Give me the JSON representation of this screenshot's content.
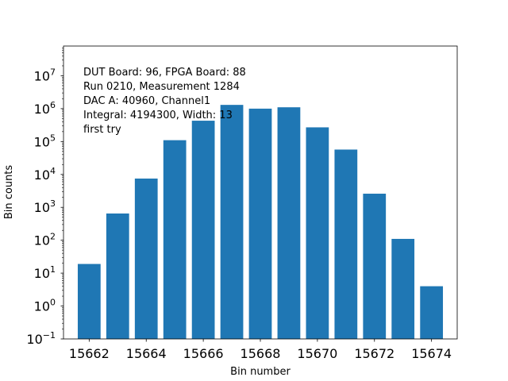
{
  "chart_data": {
    "type": "bar",
    "scale_y": "log",
    "xlabel": "Bin number",
    "ylabel": "Bin counts",
    "ylim": [
      0.1,
      80000000
    ],
    "xlim": [
      15661.1,
      15674.9
    ],
    "bar_color": "#1f77b4",
    "x": [
      15662,
      15663,
      15664,
      15665,
      15666,
      15667,
      15668,
      15669,
      15670,
      15671,
      15672,
      15673,
      15674
    ],
    "values": [
      19,
      650,
      7500,
      110000,
      430000,
      1300000,
      1000000,
      1100000,
      270000,
      57000,
      2600,
      110,
      4
    ],
    "x_ticks": [
      {
        "value": 15662,
        "label": "15662"
      },
      {
        "value": 15664,
        "label": "15664"
      },
      {
        "value": 15666,
        "label": "15666"
      },
      {
        "value": 15668,
        "label": "15668"
      },
      {
        "value": 15670,
        "label": "15670"
      },
      {
        "value": 15672,
        "label": "15672"
      },
      {
        "value": 15674,
        "label": "15674"
      }
    ],
    "y_ticks": [
      {
        "exp": -1,
        "base": "10",
        "sup": "−1"
      },
      {
        "exp": 0,
        "base": "10",
        "sup": "0"
      },
      {
        "exp": 1,
        "base": "10",
        "sup": "1"
      },
      {
        "exp": 2,
        "base": "10",
        "sup": "2"
      },
      {
        "exp": 3,
        "base": "10",
        "sup": "3"
      },
      {
        "exp": 4,
        "base": "10",
        "sup": "4"
      },
      {
        "exp": 5,
        "base": "10",
        "sup": "5"
      },
      {
        "exp": 6,
        "base": "10",
        "sup": "6"
      },
      {
        "exp": 7,
        "base": "10",
        "sup": "7"
      }
    ],
    "annotations": [
      "DUT Board: 96, FPGA Board: 88",
      "Run 0210, Measurement 1284",
      "DAC A: 40960, Channel1",
      "Integral: 4194300, Width: 13",
      "first try"
    ]
  }
}
